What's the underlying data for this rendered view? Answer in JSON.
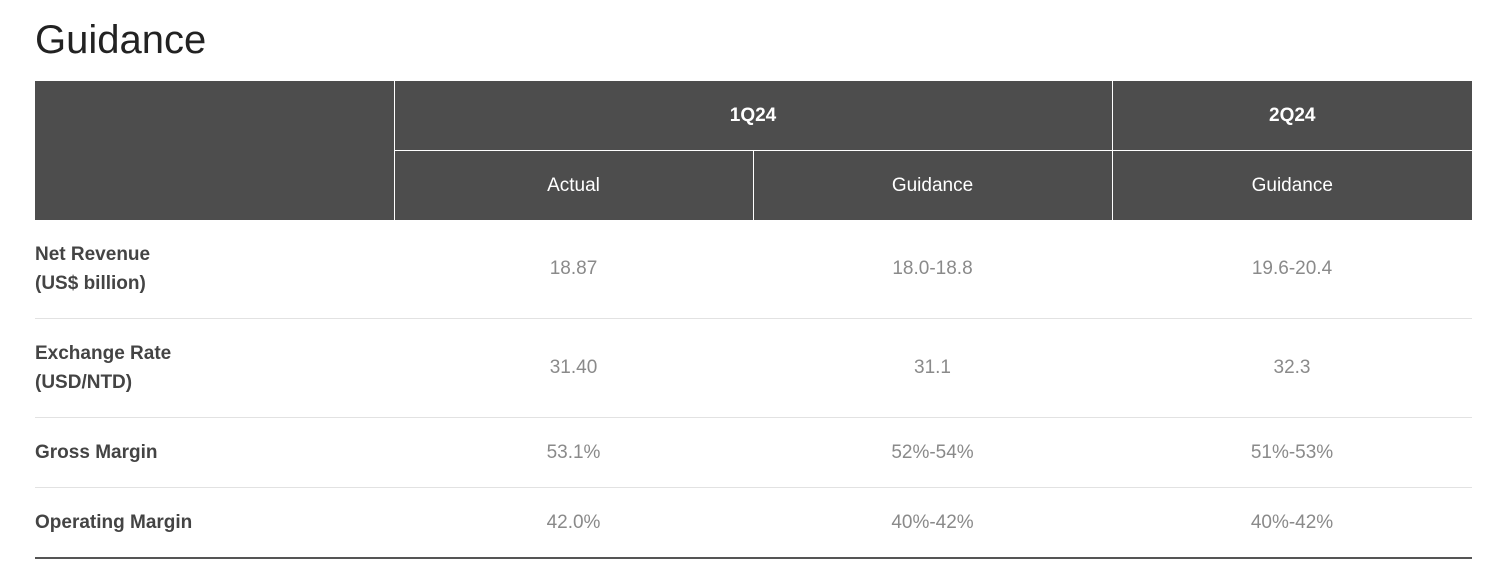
{
  "page": {
    "title": "Guidance"
  },
  "table": {
    "header": {
      "groups": [
        "1Q24",
        "2Q24"
      ],
      "subheaders": [
        "Actual",
        "Guidance",
        "Guidance"
      ]
    },
    "rows": [
      {
        "label_line1": "Net Revenue",
        "label_line2": "(US$ billion)",
        "values": [
          "18.87",
          "18.0-18.8",
          "19.6-20.4"
        ]
      },
      {
        "label_line1": "Exchange Rate",
        "label_line2": "(USD/NTD)",
        "values": [
          "31.40",
          "31.1",
          "32.3"
        ]
      },
      {
        "label_line1": "Gross Margin",
        "label_line2": "",
        "values": [
          "53.1%",
          "52%-54%",
          "51%-53%"
        ]
      },
      {
        "label_line1": "Operating Margin",
        "label_line2": "",
        "values": [
          "42.0%",
          "40%-42%",
          "40%-42%"
        ]
      }
    ]
  },
  "colors": {
    "header_bg": "#4d4d4d",
    "header_text": "#ffffff",
    "label_text": "#444444",
    "value_text": "#8a8a8a",
    "row_divider": "#e2e2e2"
  }
}
